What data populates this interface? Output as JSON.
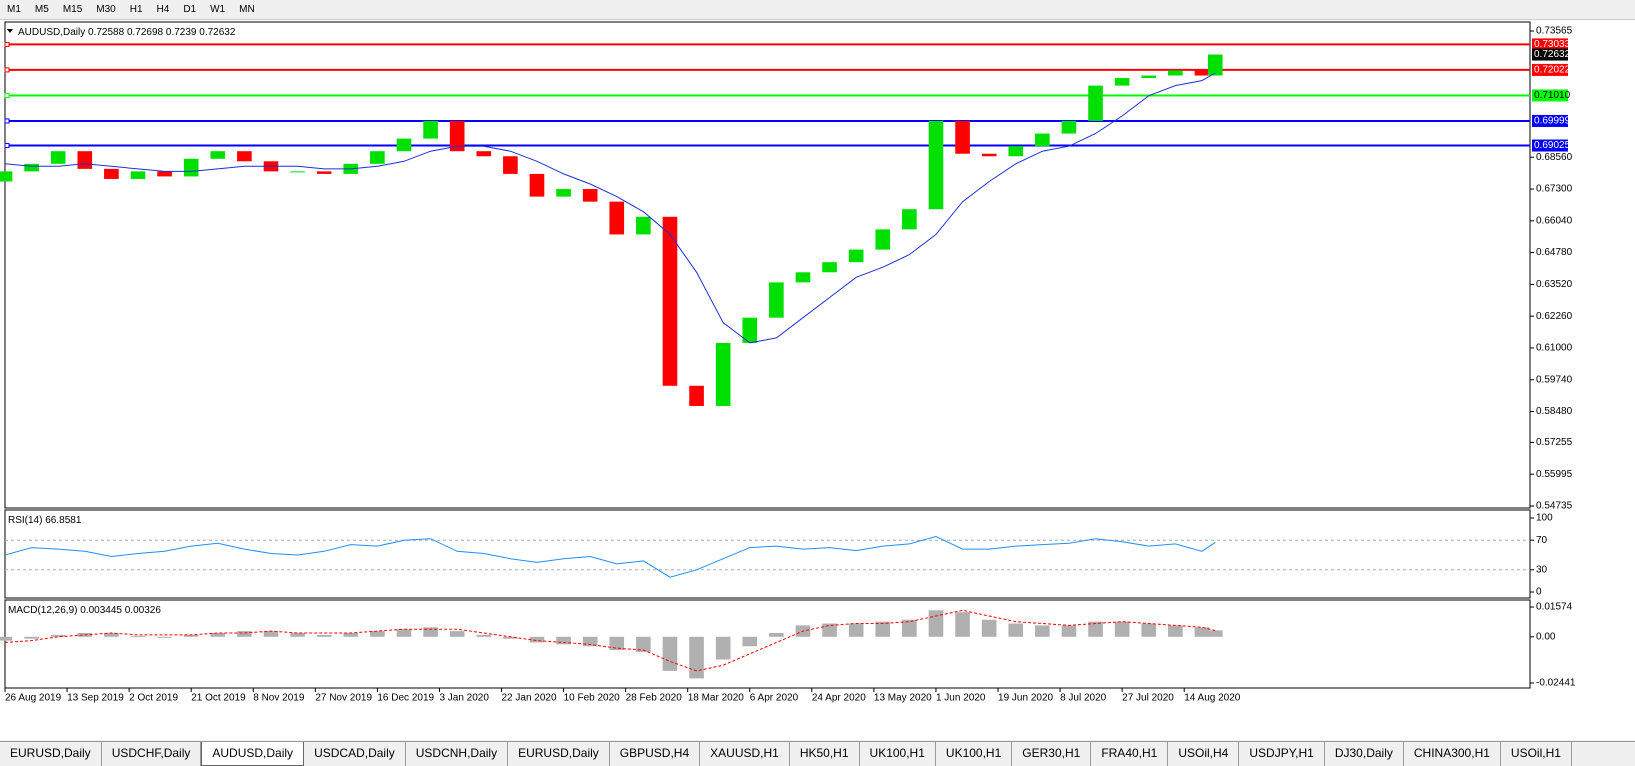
{
  "toolbar": {
    "timeframes": [
      "M1",
      "M5",
      "M15",
      "M30",
      "H1",
      "H4",
      "D1",
      "W1",
      "MN"
    ]
  },
  "tabs": [
    "EURUSD,Daily",
    "USDCHF,Daily",
    "AUDUSD,Daily",
    "USDCAD,Daily",
    "USDCNH,Daily",
    "EURUSD,Daily",
    "GBPUSD,H4",
    "XAUUSD,H1",
    "HK50,H1",
    "UK100,H1",
    "UK100,H1",
    "GER30,H1",
    "FRA40,H1",
    "USOil,H4",
    "USDJPY,H1",
    "DJ30,Daily",
    "CHINA300,H1",
    "USOil,H1"
  ],
  "active_tab": 2,
  "chart_data": [
    {
      "type": "candlestick",
      "title": "AUDUSD,Daily",
      "ohlc": [
        0.72588,
        0.72698,
        0.7239,
        0.72632
      ],
      "x": [
        0,
        6,
        12,
        18,
        24,
        30,
        36,
        42,
        48,
        54,
        60,
        66,
        72,
        78,
        84,
        90,
        96,
        102,
        108,
        114,
        120,
        126,
        132,
        138,
        144,
        150,
        156,
        162,
        168,
        174,
        180,
        186,
        192,
        198,
        204,
        210,
        216,
        222,
        228,
        234,
        240,
        246,
        252,
        258,
        264,
        270,
        273
      ],
      "first_open": 0.676,
      "close": [
        0.68,
        0.683,
        0.688,
        0.681,
        0.677,
        0.68,
        0.678,
        0.685,
        0.688,
        0.684,
        0.68,
        0.68,
        0.679,
        0.683,
        0.688,
        0.693,
        0.7,
        0.688,
        0.686,
        0.679,
        0.67,
        0.673,
        0.668,
        0.655,
        0.662,
        0.595,
        0.587,
        0.612,
        0.622,
        0.636,
        0.64,
        0.644,
        0.649,
        0.657,
        0.665,
        0.7,
        0.687,
        0.686,
        0.69,
        0.695,
        0.7,
        0.714,
        0.717,
        0.718,
        0.72,
        0.718,
        0.72632
      ],
      "up_color": "#00e000",
      "down_color": "#ff0000",
      "series": [
        {
          "color": "#1f2fd8",
          "values": [
            0.683,
            0.682,
            0.682,
            0.683,
            0.682,
            0.681,
            0.68,
            0.68,
            0.681,
            0.682,
            0.682,
            0.682,
            0.681,
            0.681,
            0.682,
            0.684,
            0.688,
            0.69,
            0.69,
            0.688,
            0.684,
            0.679,
            0.675,
            0.67,
            0.664,
            0.655,
            0.64,
            0.62,
            0.612,
            0.614,
            0.622,
            0.63,
            0.638,
            0.642,
            0.647,
            0.655,
            0.668,
            0.676,
            0.683,
            0.688,
            0.69,
            0.695,
            0.702,
            0.71,
            0.714,
            0.716,
            0.719
          ]
        }
      ],
      "xlim": [
        0,
        344
      ],
      "ylim": [
        0.54735,
        0.73565
      ],
      "yticks": [
        0.73565,
        {
          "value": 0.6856,
          "label": "0.68560"
        },
        {
          "value": 0.673,
          "label": "0.67300"
        },
        {
          "value": 0.6604,
          "label": "0.66040"
        },
        {
          "value": 0.6478,
          "label": "0.64780"
        },
        {
          "value": 0.6352,
          "label": "0.63520"
        },
        {
          "value": 0.6226,
          "label": "0.62260"
        },
        {
          "value": 0.61,
          "label": "0.61000"
        },
        {
          "value": 0.5974,
          "label": "0.59740"
        },
        {
          "value": 0.5848,
          "label": "0.58480"
        },
        0.57255,
        0.55995,
        0.54735
      ],
      "levels": [
        {
          "value": 0.73033,
          "color": "#ff0000"
        },
        {
          "value": 0.72022,
          "color": "#ff0000"
        },
        {
          "value": 0.7101,
          "label": "0.71010",
          "color": "#00ff00"
        },
        {
          "value": 0.69999,
          "color": "#0000ff"
        },
        {
          "value": 0.69025,
          "color": "#0000ff"
        }
      ],
      "current": 0.72632,
      "xticks": [
        {
          "value": 0,
          "label": "26 Aug 2019"
        },
        {
          "value": 14,
          "label": "13 Sep 2019"
        },
        {
          "value": 28,
          "label": "2 Oct 2019"
        },
        {
          "value": 42,
          "label": "21 Oct 2019"
        },
        {
          "value": 56,
          "label": "8 Nov 2019"
        },
        {
          "value": 70,
          "label": "27 Nov 2019"
        },
        {
          "value": 84,
          "label": "16 Dec 2019"
        },
        {
          "value": 98,
          "label": "3 Jan 2020"
        },
        {
          "value": 112,
          "label": "22 Jan 2020"
        },
        {
          "value": 126,
          "label": "10 Feb 2020"
        },
        {
          "value": 140,
          "label": "28 Feb 2020"
        },
        {
          "value": 154,
          "label": "18 Mar 2020"
        },
        {
          "value": 168,
          "label": "6 Apr 2020"
        },
        {
          "value": 182,
          "label": "24 Apr 2020"
        },
        {
          "value": 196,
          "label": "13 May 2020"
        },
        {
          "value": 210,
          "label": "1 Jun 2020"
        },
        {
          "value": 224,
          "label": "19 Jun 2020"
        },
        {
          "value": 238,
          "label": "8 Jul 2020"
        },
        {
          "value": 252,
          "label": "27 Jul 2020"
        },
        {
          "value": 266,
          "label": "14 Aug 2020"
        }
      ]
    },
    {
      "type": "line",
      "title": "RSI(14)",
      "last": 66.8581,
      "color": "#1e90ff",
      "values": [
        50,
        60,
        58,
        55,
        48,
        52,
        55,
        62,
        66,
        58,
        52,
        50,
        55,
        64,
        62,
        70,
        72,
        55,
        52,
        45,
        40,
        45,
        48,
        38,
        42,
        20,
        30,
        45,
        60,
        62,
        58,
        60,
        56,
        62,
        65,
        75,
        58,
        58,
        62,
        64,
        66,
        72,
        68,
        62,
        65,
        55,
        67
      ],
      "ylim": [
        0,
        100
      ],
      "yticks": [
        100,
        70,
        30,
        0
      ],
      "levels": [
        70,
        30
      ]
    },
    {
      "type": "macd",
      "title": "MACD(12,26,9)",
      "main": 0.003445,
      "signal_last": 0.00326,
      "hist_color": "#b0b0b0",
      "signal_color": "#ff0000",
      "values": [
        -0.002,
        -0.001,
        0.001,
        0.002,
        0.002,
        0.0005,
        0,
        0.001,
        0.002,
        0.003,
        0.003,
        0.002,
        0.001,
        0.002,
        0.003,
        0.004,
        0.005,
        0.003,
        0.001,
        -0.001,
        -0.003,
        -0.004,
        -0.005,
        -0.007,
        -0.008,
        -0.018,
        -0.022,
        -0.012,
        -0.005,
        0.002,
        0.006,
        0.007,
        0.007,
        0.008,
        0.009,
        0.014,
        0.013,
        0.009,
        0.007,
        0.006,
        0.006,
        0.008,
        0.008,
        0.007,
        0.006,
        0.005,
        0.0034
      ],
      "signal": [
        -0.003,
        -0.002,
        0,
        0.001,
        0.002,
        0.001,
        0.001,
        0.001,
        0.002,
        0.002,
        0.003,
        0.002,
        0.002,
        0.002,
        0.003,
        0.004,
        0.004,
        0.004,
        0.002,
        0,
        -0.002,
        -0.003,
        -0.004,
        -0.006,
        -0.007,
        -0.013,
        -0.018,
        -0.015,
        -0.009,
        -0.003,
        0.003,
        0.006,
        0.007,
        0.007,
        0.008,
        0.011,
        0.014,
        0.011,
        0.008,
        0.007,
        0.006,
        0.007,
        0.008,
        0.007,
        0.006,
        0.005,
        0.0033
      ],
      "ylim": [
        -0.02441,
        0.01574
      ],
      "yticks": [
        0.01574,
        {
          "value": 0,
          "label": "0.00"
        },
        -0.02441
      ]
    }
  ]
}
